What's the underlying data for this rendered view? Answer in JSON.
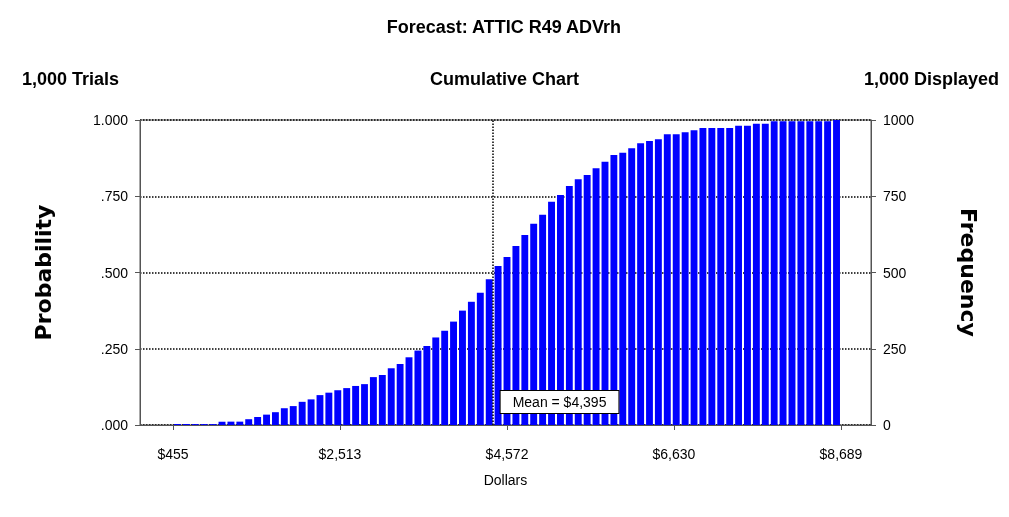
{
  "chart_data": {
    "type": "histogram",
    "title": "Forecast: ATTIC R49 ADVrh",
    "subtitle": "Cumulative Chart",
    "annotations": [
      "1,000 Trials",
      "1,000 Displayed"
    ],
    "xlabel": "Dollars",
    "ylabel": "Probability",
    "y2label": "Frequency",
    "bins": [
      455,
      565,
      675,
      784,
      894,
      1004,
      1114,
      1224,
      1333,
      1443,
      1553,
      1663,
      1772,
      1882,
      1992,
      2102,
      2212,
      2321,
      2431,
      2541,
      2651,
      2761,
      2870,
      2980,
      3090,
      3200,
      3309,
      3419,
      3529,
      3639,
      3749,
      3858,
      3968,
      4078,
      4188,
      4298,
      4407,
      4517,
      4627,
      4737,
      4846,
      4956,
      5066,
      5176,
      5286,
      5395,
      5505,
      5615,
      5725,
      5835,
      5944,
      6054,
      6164,
      6274,
      6383,
      6493,
      6603,
      6713,
      6823,
      6932,
      7042,
      7152,
      7262,
      7372,
      7481,
      7591,
      7701,
      7811,
      7920,
      8030,
      8140,
      8250,
      8360,
      8469,
      8579,
      8689
    ],
    "values": [
      0.003,
      0.003,
      0.003,
      0.003,
      0.003,
      0.011,
      0.011,
      0.011,
      0.019,
      0.026,
      0.034,
      0.042,
      0.055,
      0.062,
      0.076,
      0.084,
      0.098,
      0.106,
      0.114,
      0.121,
      0.128,
      0.134,
      0.157,
      0.164,
      0.186,
      0.2,
      0.222,
      0.244,
      0.259,
      0.287,
      0.309,
      0.339,
      0.375,
      0.404,
      0.434,
      0.478,
      0.521,
      0.551,
      0.587,
      0.623,
      0.66,
      0.689,
      0.732,
      0.754,
      0.784,
      0.806,
      0.82,
      0.842,
      0.863,
      0.885,
      0.893,
      0.907,
      0.924,
      0.931,
      0.937,
      0.953,
      0.953,
      0.96,
      0.966,
      0.974,
      0.974,
      0.974,
      0.974,
      0.981,
      0.981,
      0.988,
      0.988,
      0.996,
      0.996,
      0.996,
      0.996,
      0.996,
      0.996,
      0.996,
      1.0
    ],
    "color": "#0000ff",
    "xlim": [
      48,
      9059
    ],
    "xticks": [
      {
        "value": 455,
        "label": "$455"
      },
      {
        "value": 2513,
        "label": "$2,513"
      },
      {
        "value": 4572,
        "label": "$4,572"
      },
      {
        "value": 6630,
        "label": "$6,630"
      },
      {
        "value": 8689,
        "label": "$8,689"
      }
    ],
    "ylim": [
      0,
      1
    ],
    "yticks": [
      {
        "value": 0,
        "label": ".000"
      },
      {
        "value": 0.25,
        "label": ".250"
      },
      {
        "value": 0.5,
        "label": ".500"
      },
      {
        "value": 0.75,
        "label": ".750"
      },
      {
        "value": 1,
        "label": "1.000"
      }
    ],
    "y2lim": [
      0,
      1000
    ],
    "y2ticks": [
      0,
      250,
      500,
      750,
      1000
    ],
    "ref_lines": [
      {
        "axis": "x",
        "value": 4395,
        "label": "Mean = $4,395",
        "line_style": "dotted"
      }
    ],
    "grid": "y"
  }
}
